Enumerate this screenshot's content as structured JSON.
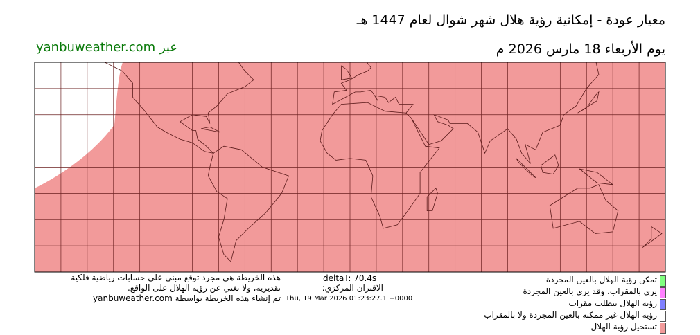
{
  "header": {
    "title": "معيار عودة - إمكانية رؤية هلال شهر شوال لعام 1447 هـ",
    "date": "يوم الأربعاء 18 مارس 2026 م",
    "site": "عبر yanbuweather.com"
  },
  "footer": {
    "notes": [
      "هذه الخريطة هي مجرد توقع مبني على حسابات رياضية فلكية",
      "تقديرية، ولا تغني عن رؤية الهلال على الواقع.",
      "تم إنشاء هذه الخريطة بواسطة yanbuweather.com"
    ],
    "deltat": "deltaT: 70.4s",
    "conjunction_label": "الاقتران المركزي:",
    "conjunction_time": "Thu, 19 Mar 2026 01:23:27.1 +0000"
  },
  "legend": [
    {
      "label": "تمكن رؤية الهلال بالعين المجردة",
      "color": "#80ff80"
    },
    {
      "label": "يرى بالمقراب، وقد يرى بالعين المجردة",
      "color": "#ff80ff"
    },
    {
      "label": "رؤية الهلال تتطلب مقراب",
      "color": "#8080ff"
    },
    {
      "label": "رؤية الهلال غير ممكنة بالعين المجردة ولا بالمقراب",
      "color": "#ffffff"
    },
    {
      "label": "تستحيل رؤية الهلال",
      "color": "#f29a9a"
    }
  ]
}
